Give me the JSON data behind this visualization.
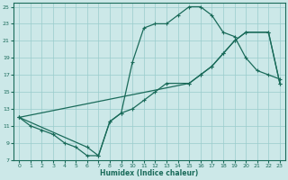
{
  "xlabel": "Humidex (Indice chaleur)",
  "bg_color": "#cce8e8",
  "line_color": "#1a6b5a",
  "grid_color": "#99cccc",
  "xlim": [
    -0.5,
    23.5
  ],
  "ylim": [
    7,
    25.5
  ],
  "xticks": [
    0,
    1,
    2,
    3,
    4,
    5,
    6,
    7,
    8,
    9,
    10,
    11,
    12,
    13,
    14,
    15,
    16,
    17,
    18,
    19,
    20,
    21,
    22,
    23
  ],
  "yticks": [
    7,
    9,
    11,
    13,
    15,
    17,
    19,
    21,
    23,
    25
  ],
  "line1_x": [
    0,
    1,
    2,
    3,
    4,
    5,
    6,
    7,
    8,
    9,
    10,
    11,
    12,
    13,
    14,
    15,
    16,
    17,
    18,
    19,
    20,
    21,
    22,
    23
  ],
  "line1_y": [
    12,
    11,
    10.5,
    10,
    9,
    8.5,
    7.5,
    7.5,
    11.5,
    12.5,
    18.5,
    22.5,
    23,
    23,
    24,
    25,
    25,
    24,
    22,
    21.5,
    19,
    17.5,
    17,
    16.5
  ],
  "line2_x": [
    0,
    15,
    16,
    17,
    18,
    19,
    20,
    22,
    23
  ],
  "line2_y": [
    12,
    16,
    17,
    18,
    19.5,
    21,
    22,
    22,
    16
  ],
  "line3_x": [
    0,
    6,
    7,
    8,
    9,
    10,
    11,
    12,
    13,
    15,
    16,
    17,
    18,
    19,
    20,
    22,
    23
  ],
  "line3_y": [
    12,
    8.5,
    7.5,
    11.5,
    12.5,
    13,
    14,
    15,
    16,
    16,
    17,
    18,
    19.5,
    21,
    22,
    22,
    16
  ]
}
